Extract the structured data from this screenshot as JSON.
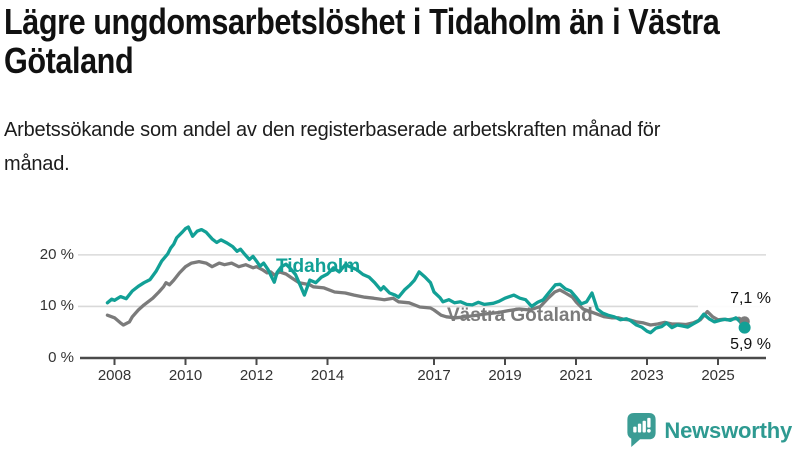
{
  "header": {
    "title": "Lägre ungdomsarbetslöshet i Tidaholm än i Västra Götaland",
    "subtitle": "Arbetssökande som andel av den registerbaserade arbetskraften månad för månad."
  },
  "footer": {
    "brand": "Newsworthy",
    "brand_color": "#2e9a91",
    "logo_icon": "speech-bubble-bar-chart-icon"
  },
  "chart_data": {
    "type": "line",
    "title": "Lägre ungdomsarbetslöshet i Tidaholm än i Västra Götaland",
    "xlabel": "",
    "ylabel": "",
    "x_unit": "decimal year (monthly data)",
    "y_unit": "percent",
    "xlim": [
      2007.7,
      2026.3
    ],
    "ylim": [
      0,
      27
    ],
    "yticks": [
      0,
      10,
      20
    ],
    "ytick_labels": [
      "0 %",
      "10 %",
      "20 %"
    ],
    "xticks": [
      2008,
      2010,
      2012,
      2014,
      2017,
      2019,
      2021,
      2023,
      2025
    ],
    "xtick_labels": [
      "2008",
      "2010",
      "2012",
      "2014",
      "2017",
      "2019",
      "2021",
      "2023",
      "2025"
    ],
    "grid": "horizontal",
    "legend_position": "inline-labels",
    "style": {
      "grid_color": "#d9d9d9",
      "axis_color": "#4a4a4a",
      "tick_label_color": "#333333"
    },
    "series": [
      {
        "name": "Tidaholm",
        "color": "#12a096",
        "end_value_label": "5,9 %",
        "end_value": 5.9,
        "points": [
          [
            2007.8,
            10.7
          ],
          [
            2007.92,
            11.4
          ],
          [
            2008.0,
            11.2
          ],
          [
            2008.17,
            11.9
          ],
          [
            2008.33,
            11.5
          ],
          [
            2008.5,
            13.0
          ],
          [
            2008.67,
            13.9
          ],
          [
            2008.83,
            14.6
          ],
          [
            2009.0,
            15.2
          ],
          [
            2009.17,
            16.8
          ],
          [
            2009.33,
            18.8
          ],
          [
            2009.5,
            20.2
          ],
          [
            2009.58,
            21.3
          ],
          [
            2009.67,
            22.1
          ],
          [
            2009.75,
            23.3
          ],
          [
            2009.92,
            24.5
          ],
          [
            2010.0,
            25.1
          ],
          [
            2010.08,
            25.4
          ],
          [
            2010.2,
            23.6
          ],
          [
            2010.33,
            24.6
          ],
          [
            2010.45,
            24.9
          ],
          [
            2010.58,
            24.4
          ],
          [
            2010.75,
            23.1
          ],
          [
            2010.88,
            22.4
          ],
          [
            2011.0,
            22.9
          ],
          [
            2011.17,
            22.3
          ],
          [
            2011.33,
            21.6
          ],
          [
            2011.45,
            20.7
          ],
          [
            2011.55,
            21.1
          ],
          [
            2011.67,
            20.1
          ],
          [
            2011.8,
            19.1
          ],
          [
            2011.9,
            19.7
          ],
          [
            2012.0,
            18.8
          ],
          [
            2012.1,
            17.8
          ],
          [
            2012.2,
            18.4
          ],
          [
            2012.33,
            17.1
          ],
          [
            2012.42,
            15.8
          ],
          [
            2012.5,
            14.7
          ],
          [
            2012.58,
            16.6
          ],
          [
            2012.7,
            17.7
          ],
          [
            2012.83,
            18.2
          ],
          [
            2012.95,
            17.4
          ],
          [
            2013.1,
            16.2
          ],
          [
            2013.25,
            13.8
          ],
          [
            2013.35,
            12.2
          ],
          [
            2013.5,
            15.1
          ],
          [
            2013.67,
            14.6
          ],
          [
            2013.83,
            15.7
          ],
          [
            2014.0,
            16.3
          ],
          [
            2014.17,
            17.5
          ],
          [
            2014.33,
            16.7
          ],
          [
            2014.5,
            18.1
          ],
          [
            2014.67,
            17.6
          ],
          [
            2014.83,
            17.1
          ],
          [
            2015.0,
            16.2
          ],
          [
            2015.17,
            15.7
          ],
          [
            2015.33,
            14.6
          ],
          [
            2015.5,
            13.2
          ],
          [
            2015.58,
            13.8
          ],
          [
            2015.75,
            12.6
          ],
          [
            2015.9,
            12.2
          ],
          [
            2016.0,
            11.8
          ],
          [
            2016.17,
            13.2
          ],
          [
            2016.33,
            14.2
          ],
          [
            2016.45,
            15.1
          ],
          [
            2016.58,
            16.7
          ],
          [
            2016.75,
            15.7
          ],
          [
            2016.9,
            14.6
          ],
          [
            2017.0,
            12.8
          ],
          [
            2017.17,
            11.7
          ],
          [
            2017.25,
            10.9
          ],
          [
            2017.42,
            11.3
          ],
          [
            2017.58,
            10.7
          ],
          [
            2017.75,
            10.9
          ],
          [
            2017.92,
            10.4
          ],
          [
            2018.08,
            10.3
          ],
          [
            2018.25,
            10.8
          ],
          [
            2018.42,
            10.4
          ],
          [
            2018.67,
            10.6
          ],
          [
            2018.83,
            11.0
          ],
          [
            2019.0,
            11.6
          ],
          [
            2019.25,
            12.2
          ],
          [
            2019.42,
            11.6
          ],
          [
            2019.58,
            11.3
          ],
          [
            2019.75,
            10.0
          ],
          [
            2019.92,
            10.8
          ],
          [
            2020.08,
            11.3
          ],
          [
            2020.25,
            12.8
          ],
          [
            2020.42,
            14.2
          ],
          [
            2020.55,
            14.3
          ],
          [
            2020.7,
            13.4
          ],
          [
            2020.85,
            13.0
          ],
          [
            2021.0,
            11.8
          ],
          [
            2021.15,
            10.5
          ],
          [
            2021.3,
            10.9
          ],
          [
            2021.45,
            12.6
          ],
          [
            2021.6,
            9.5
          ],
          [
            2021.75,
            8.7
          ],
          [
            2021.9,
            8.3
          ],
          [
            2022.08,
            8.0
          ],
          [
            2022.25,
            7.4
          ],
          [
            2022.42,
            7.6
          ],
          [
            2022.55,
            7.2
          ],
          [
            2022.7,
            6.4
          ],
          [
            2022.85,
            6.0
          ],
          [
            2023.0,
            5.2
          ],
          [
            2023.1,
            4.9
          ],
          [
            2023.25,
            5.8
          ],
          [
            2023.42,
            6.1
          ],
          [
            2023.55,
            6.8
          ],
          [
            2023.7,
            5.9
          ],
          [
            2023.85,
            6.4
          ],
          [
            2024.0,
            6.2
          ],
          [
            2024.15,
            6.0
          ],
          [
            2024.3,
            6.6
          ],
          [
            2024.45,
            7.2
          ],
          [
            2024.6,
            8.5
          ],
          [
            2024.75,
            7.6
          ],
          [
            2024.9,
            7.0
          ],
          [
            2025.05,
            7.3
          ],
          [
            2025.2,
            7.5
          ],
          [
            2025.35,
            7.3
          ],
          [
            2025.5,
            7.8
          ],
          [
            2025.6,
            7.2
          ],
          [
            2025.75,
            5.9
          ]
        ]
      },
      {
        "name": "Västra Götaland",
        "color": "#7b7b7b",
        "end_value_label": "7,1 %",
        "end_value": 7.1,
        "points": [
          [
            2007.8,
            8.3
          ],
          [
            2008.0,
            7.8
          ],
          [
            2008.17,
            6.8
          ],
          [
            2008.25,
            6.4
          ],
          [
            2008.42,
            7.0
          ],
          [
            2008.5,
            8.0
          ],
          [
            2008.67,
            9.3
          ],
          [
            2008.83,
            10.3
          ],
          [
            2009.08,
            11.6
          ],
          [
            2009.25,
            12.8
          ],
          [
            2009.38,
            13.8
          ],
          [
            2009.45,
            14.6
          ],
          [
            2009.55,
            14.2
          ],
          [
            2009.67,
            15.1
          ],
          [
            2009.83,
            16.5
          ],
          [
            2010.0,
            17.7
          ],
          [
            2010.17,
            18.4
          ],
          [
            2010.38,
            18.7
          ],
          [
            2010.58,
            18.4
          ],
          [
            2010.75,
            17.7
          ],
          [
            2010.95,
            18.4
          ],
          [
            2011.1,
            18.1
          ],
          [
            2011.3,
            18.4
          ],
          [
            2011.5,
            17.7
          ],
          [
            2011.7,
            18.1
          ],
          [
            2011.9,
            17.5
          ],
          [
            2012.0,
            17.7
          ],
          [
            2012.17,
            17.1
          ],
          [
            2012.3,
            16.5
          ],
          [
            2012.4,
            16.7
          ],
          [
            2012.5,
            16.1
          ],
          [
            2012.65,
            16.7
          ],
          [
            2012.83,
            16.3
          ],
          [
            2013.0,
            15.5
          ],
          [
            2013.2,
            14.6
          ],
          [
            2013.5,
            14.2
          ],
          [
            2013.6,
            13.8
          ],
          [
            2013.9,
            13.6
          ],
          [
            2014.2,
            12.8
          ],
          [
            2014.5,
            12.6
          ],
          [
            2014.75,
            12.2
          ],
          [
            2015.05,
            11.8
          ],
          [
            2015.3,
            11.6
          ],
          [
            2015.6,
            11.3
          ],
          [
            2015.85,
            11.6
          ],
          [
            2016.0,
            10.9
          ],
          [
            2016.3,
            10.7
          ],
          [
            2016.6,
            9.9
          ],
          [
            2016.9,
            9.7
          ],
          [
            2017.0,
            9.3
          ],
          [
            2017.2,
            8.3
          ],
          [
            2017.35,
            8.0
          ],
          [
            2017.6,
            7.8
          ],
          [
            2017.9,
            8.0
          ],
          [
            2018.2,
            8.3
          ],
          [
            2018.5,
            8.6
          ],
          [
            2018.8,
            8.8
          ],
          [
            2019.1,
            9.2
          ],
          [
            2019.4,
            9.5
          ],
          [
            2019.7,
            9.3
          ],
          [
            2020.0,
            10.0
          ],
          [
            2020.2,
            11.5
          ],
          [
            2020.4,
            12.8
          ],
          [
            2020.55,
            13.2
          ],
          [
            2020.7,
            12.6
          ],
          [
            2020.9,
            11.8
          ],
          [
            2021.0,
            10.9
          ],
          [
            2021.2,
            9.5
          ],
          [
            2021.4,
            9.0
          ],
          [
            2021.6,
            8.5
          ],
          [
            2021.8,
            8.0
          ],
          [
            2022.0,
            7.8
          ],
          [
            2022.2,
            7.8
          ],
          [
            2022.35,
            7.5
          ],
          [
            2022.5,
            7.4
          ],
          [
            2022.7,
            7.0
          ],
          [
            2022.9,
            6.8
          ],
          [
            2023.1,
            6.4
          ],
          [
            2023.3,
            6.6
          ],
          [
            2023.5,
            6.9
          ],
          [
            2023.7,
            6.6
          ],
          [
            2023.9,
            6.6
          ],
          [
            2024.1,
            6.5
          ],
          [
            2024.3,
            6.8
          ],
          [
            2024.5,
            7.4
          ],
          [
            2024.7,
            9.0
          ],
          [
            2024.85,
            8.0
          ],
          [
            2025.0,
            7.4
          ],
          [
            2025.15,
            7.5
          ],
          [
            2025.3,
            7.4
          ],
          [
            2025.45,
            7.6
          ],
          [
            2025.6,
            7.7
          ],
          [
            2025.75,
            7.1
          ]
        ]
      }
    ]
  }
}
